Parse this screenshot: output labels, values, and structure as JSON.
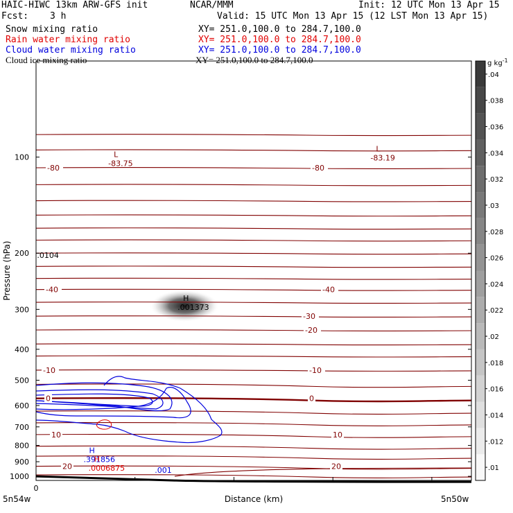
{
  "header": {
    "model": "HAIC-HIWC 13km ARW-GFS init",
    "org": "NCAR/MMM",
    "init": "Init: 12 UTC Mon 13 Apr 15",
    "fcst_label": "Fcst:",
    "fcst_value": "3 h",
    "valid": "Valid: 15 UTC Mon 13 Apr 15 (12 LST Mon 13 Apr 15)"
  },
  "fields": [
    {
      "name": "Snow mixing ratio",
      "xy": "XY= 251.0,100.0 to 284.7,100.0",
      "color": "#000000"
    },
    {
      "name": "Rain water mixing ratio",
      "xy": "XY= 251.0,100.0 to 284.7,100.0",
      "color": "#e00000"
    },
    {
      "name": "Cloud water mixing ratio",
      "xy": "XY= 251.0,100.0 to 284.7,100.0",
      "color": "#0000dd"
    },
    {
      "name": "Cloud ice mixing ratio",
      "xy": "XY= 251.0,100.0 to 284.7,100.0",
      "color": "#000000"
    }
  ],
  "colors": {
    "temperature_contour": "#800000",
    "zero_contour": "#800000",
    "cloud_water": "#0000dd",
    "rain_water": "#e00000",
    "terrain": "#000000"
  },
  "chart_data": {
    "type": "contour",
    "xlabel": "Distance (km)",
    "ylabel": "Pressure (hPa)",
    "x_tick_labels": [
      "0"
    ],
    "x_range": [
      0,
      440
    ],
    "x_end_labels": {
      "left": "5n54w",
      "right": "5n50w"
    },
    "ylim": [
      50,
      1030
    ],
    "y_ticks": [
      100,
      200,
      300,
      400,
      500,
      600,
      700,
      800,
      900,
      1000
    ],
    "y_log": true,
    "colorbar": {
      "unit": "g kg",
      "unit_exp": "-1",
      "ticks": [
        ".01",
        ".012",
        ".014",
        ".016",
        ".018",
        ".02",
        ".022",
        ".024",
        ".026",
        ".028",
        ".03",
        ".032",
        ".034",
        ".036",
        ".038",
        ".04"
      ]
    },
    "temperature_contours": [
      {
        "p": 85
      },
      {
        "p": 95
      },
      {
        "p": 108,
        "label": "-80"
      },
      {
        "p": 122
      },
      {
        "p": 137
      },
      {
        "p": 152
      },
      {
        "p": 167
      },
      {
        "p": 182
      },
      {
        "p": 200
      },
      {
        "p": 220
      },
      {
        "p": 240
      },
      {
        "p": 260,
        "label": "-40"
      },
      {
        "p": 285
      },
      {
        "p": 315,
        "label": "-30"
      },
      {
        "p": 348,
        "label": "-20"
      },
      {
        "p": 385
      },
      {
        "p": 420
      },
      {
        "p": 465,
        "label": "-10"
      },
      {
        "p": 515
      },
      {
        "p": 570,
        "label": "0",
        "bold": true
      },
      {
        "p": 625
      },
      {
        "p": 680
      },
      {
        "p": 740,
        "label": "10"
      },
      {
        "p": 805
      },
      {
        "p": 865
      },
      {
        "p": 930,
        "label": "20"
      },
      {
        "p": 990
      }
    ],
    "temperature_labels_left": [
      "-80",
      "-40",
      "-10",
      "0",
      "10",
      "20"
    ],
    "temperature_labels_right": [
      "-80",
      "-40",
      "-30",
      "-20",
      "-10",
      "0",
      "10",
      "20"
    ],
    "extrema": [
      {
        "kind": "L",
        "value": "-83.75",
        "x": 80,
        "p": 102,
        "color": "#800000"
      },
      {
        "kind": "L",
        "value": "-83.19",
        "x": 345,
        "p": 98,
        "color": "#800000"
      },
      {
        "kind": "H",
        "value": ".001373",
        "x": 150,
        "p": 288,
        "color": "#000000"
      },
      {
        "kind": "H",
        "value": ".391856",
        "x": 55,
        "p": 862,
        "color": "#0000dd"
      },
      {
        "kind": "H",
        "value": ".0006875",
        "x": 60,
        "p": 917,
        "color": "#e00000"
      }
    ],
    "other_labels": [
      {
        "text": ".001",
        "x": 120,
        "p": 955,
        "color": "#0000dd"
      },
      {
        "text": ".0104",
        "x": 1,
        "p": 203,
        "color": "#000000"
      }
    ],
    "shaded_maximum": {
      "value": 0.04,
      "x": 150,
      "p": 288
    }
  }
}
